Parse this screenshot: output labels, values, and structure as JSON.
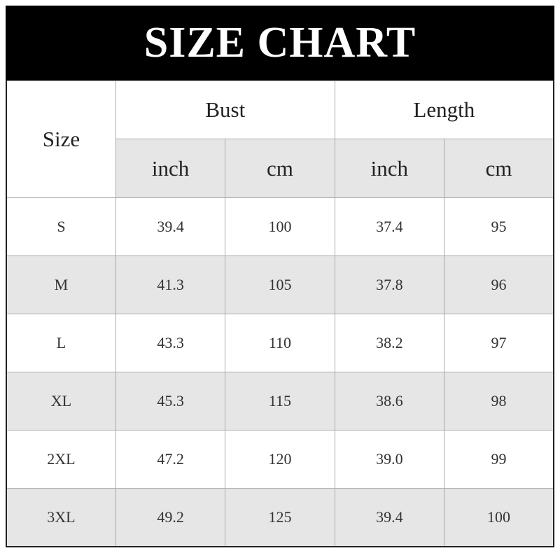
{
  "title": "SIZE CHART",
  "header": {
    "size": "Size",
    "groups": [
      "Bust",
      "Length"
    ],
    "units": [
      "inch",
      "cm",
      "inch",
      "cm"
    ]
  },
  "rows": [
    {
      "size": "S",
      "bust_inch": "39.4",
      "bust_cm": "100",
      "length_inch": "37.4",
      "length_cm": "95"
    },
    {
      "size": "M",
      "bust_inch": "41.3",
      "bust_cm": "105",
      "length_inch": "37.8",
      "length_cm": "96"
    },
    {
      "size": "L",
      "bust_inch": "43.3",
      "bust_cm": "110",
      "length_inch": "38.2",
      "length_cm": "97"
    },
    {
      "size": "XL",
      "bust_inch": "45.3",
      "bust_cm": "115",
      "length_inch": "38.6",
      "length_cm": "98"
    },
    {
      "size": "2XL",
      "bust_inch": "47.2",
      "bust_cm": "120",
      "length_inch": "39.0",
      "length_cm": "99"
    },
    {
      "size": "3XL",
      "bust_inch": "49.2",
      "bust_cm": "125",
      "length_inch": "39.4",
      "length_cm": "100"
    }
  ],
  "colors": {
    "banner": "#000000",
    "stripe": "#e6e6e6"
  }
}
